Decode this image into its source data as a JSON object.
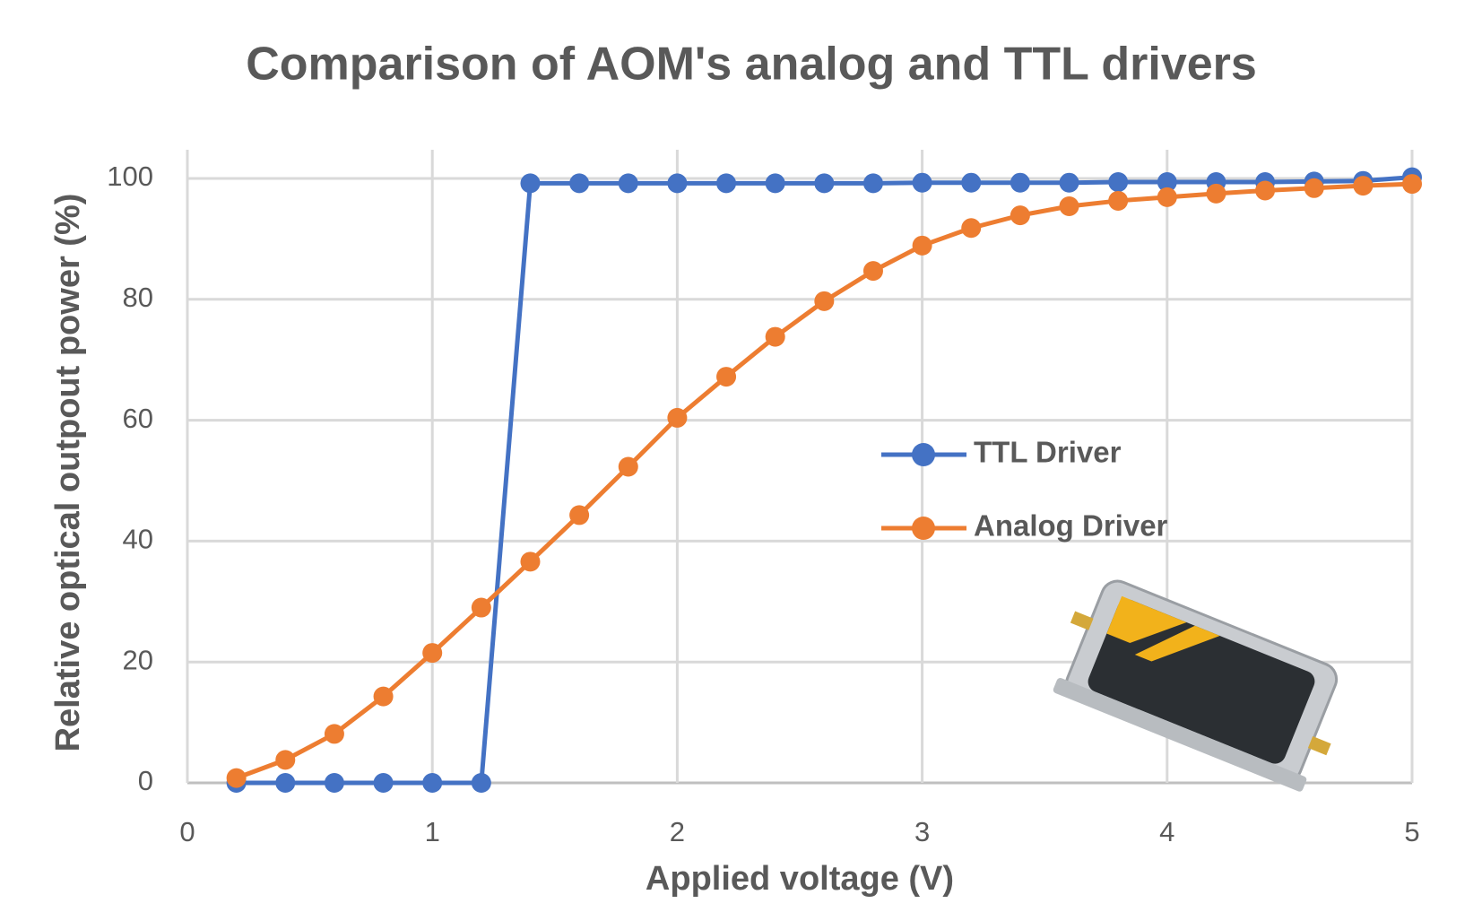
{
  "chart_data": {
    "type": "line",
    "title": "Comparison of AOM's analog and TTL drivers",
    "x_label": "Applied voltage (V)",
    "y_label": "Relative optical outpout power  (%)",
    "x": [
      0.2,
      0.4,
      0.6,
      0.8,
      1.0,
      1.2,
      1.4,
      1.6,
      1.8,
      2.0,
      2.2,
      2.4,
      2.6,
      2.8,
      3.0,
      3.2,
      3.4,
      3.6,
      3.8,
      4.0,
      4.2,
      4.4,
      4.6,
      4.8,
      5.0
    ],
    "series": [
      {
        "name": "TTL Driver",
        "color": "#4472c4",
        "values": [
          0,
          0,
          0,
          0,
          0,
          0,
          99.2,
          99.2,
          99.2,
          99.2,
          99.2,
          99.2,
          99.2,
          99.2,
          99.3,
          99.3,
          99.3,
          99.3,
          99.4,
          99.4,
          99.4,
          99.4,
          99.5,
          99.6,
          100.2
        ]
      },
      {
        "name": "Analog Driver",
        "color": "#ed7d31",
        "values": [
          0.8,
          3.8,
          8.1,
          14.3,
          21.5,
          29.0,
          36.6,
          44.3,
          52.3,
          60.4,
          67.2,
          73.8,
          79.7,
          84.7,
          88.9,
          91.8,
          93.9,
          95.4,
          96.3,
          96.9,
          97.5,
          98.0,
          98.4,
          98.8,
          99.1
        ]
      }
    ],
    "xlim": [
      0,
      5
    ],
    "xticks": [
      0,
      1,
      2,
      3,
      4,
      5
    ],
    "ylim": [
      0,
      100
    ],
    "yticks": [
      0,
      20,
      40,
      60,
      80,
      100
    ],
    "grid": true,
    "legend": "right"
  }
}
